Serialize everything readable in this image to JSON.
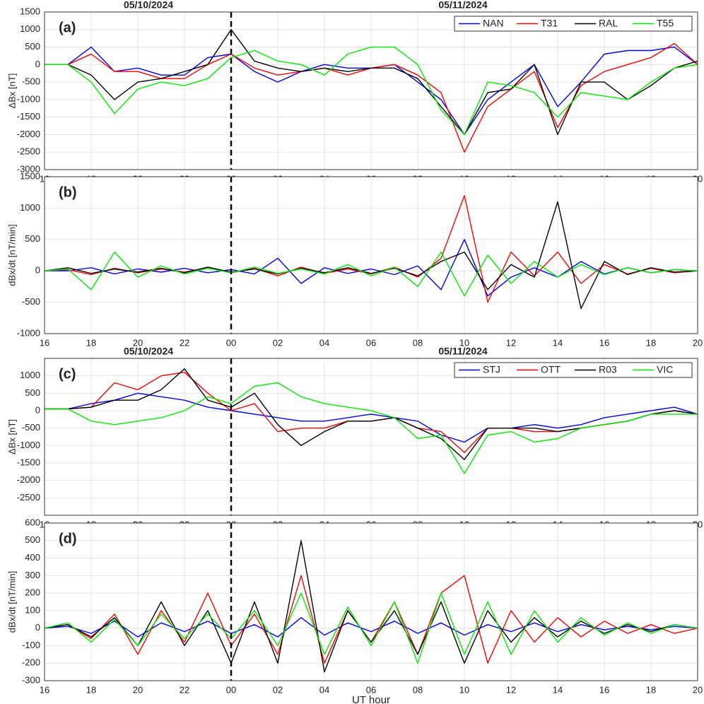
{
  "chart_data": [
    {
      "type": "line",
      "panel_label": "(a)",
      "ylabel": "ΔBx [nT]",
      "date_labels": [
        "05/10/2024",
        "05/11/2024"
      ],
      "vline_x": 24,
      "legend": "northeast",
      "grid": true,
      "x": [
        16,
        17,
        18,
        19,
        20,
        21,
        22,
        23,
        24,
        25,
        26,
        27,
        28,
        29,
        30,
        31,
        32,
        33,
        34,
        35,
        36,
        37,
        38,
        39,
        40,
        41,
        42,
        43,
        44
      ],
      "xlim": [
        16,
        44
      ],
      "xticks": [
        16,
        18,
        20,
        22,
        {
          "value": 24,
          "label": "00"
        },
        {
          "value": 26,
          "label": "02"
        },
        {
          "value": 28,
          "label": "04"
        },
        {
          "value": 30,
          "label": "06"
        },
        {
          "value": 32,
          "label": "08"
        },
        {
          "value": 34,
          "label": "10"
        },
        {
          "value": 36,
          "label": "12"
        },
        {
          "value": 38,
          "label": "14"
        },
        {
          "value": 40,
          "label": "16"
        },
        {
          "value": 42,
          "label": "18"
        },
        {
          "value": 44,
          "label": "20"
        }
      ],
      "ylim": [
        -3000,
        1500
      ],
      "yticks": [
        -3000,
        -2500,
        -2000,
        -1500,
        -1000,
        -500,
        0,
        500,
        1000,
        1500
      ],
      "series": [
        {
          "name": "NAN",
          "color": "#0000ff",
          "values": [
            0,
            0,
            500,
            -200,
            -100,
            -300,
            -300,
            200,
            300,
            -200,
            -500,
            -200,
            0,
            -100,
            -100,
            0,
            -500,
            -1000,
            -2000,
            -1000,
            -500,
            0,
            -1200,
            -500,
            300,
            400,
            400,
            500,
            0
          ]
        },
        {
          "name": "T31",
          "color": "#ff0000",
          "values": [
            0,
            0,
            300,
            -200,
            -200,
            -400,
            -400,
            0,
            300,
            -100,
            -300,
            -200,
            -100,
            -300,
            -100,
            0,
            -300,
            -800,
            -2500,
            -1200,
            -700,
            -200,
            -1800,
            -600,
            -200,
            0,
            200,
            600,
            0
          ]
        },
        {
          "name": "RAL",
          "color": "#000000",
          "values": [
            0,
            0,
            -300,
            -1000,
            -500,
            -400,
            -200,
            0,
            1000,
            100,
            -100,
            -200,
            -100,
            -200,
            -100,
            -100,
            -400,
            -1200,
            -2000,
            -800,
            -700,
            0,
            -2000,
            -500,
            -500,
            -1000,
            -600,
            -100,
            100
          ]
        },
        {
          "name": "T55",
          "color": "#00ee00",
          "values": [
            0,
            0,
            -500,
            -1400,
            -700,
            -500,
            -600,
            -400,
            200,
            400,
            100,
            0,
            -300,
            300,
            500,
            500,
            0,
            -1300,
            -2000,
            -500,
            -600,
            -800,
            -1500,
            -800,
            -900,
            -1000,
            -500,
            -100,
            0
          ]
        }
      ]
    },
    {
      "type": "line",
      "panel_label": "(b)",
      "ylabel": "dBx/dt [nT/min]",
      "vline_x": 24,
      "grid": true,
      "x": [
        16,
        17,
        18,
        19,
        20,
        21,
        22,
        23,
        24,
        25,
        26,
        27,
        28,
        29,
        30,
        31,
        32,
        33,
        34,
        35,
        36,
        37,
        38,
        39,
        40,
        41,
        42,
        43,
        44
      ],
      "xlim": [
        16,
        44
      ],
      "xticks": [
        16,
        18,
        20,
        22,
        {
          "value": 24,
          "label": "00"
        },
        {
          "value": 26,
          "label": "02"
        },
        {
          "value": 28,
          "label": "04"
        },
        {
          "value": 30,
          "label": "06"
        },
        {
          "value": 32,
          "label": "08"
        },
        {
          "value": 34,
          "label": "10"
        },
        {
          "value": 36,
          "label": "12"
        },
        {
          "value": 38,
          "label": "14"
        },
        {
          "value": 40,
          "label": "16"
        },
        {
          "value": 42,
          "label": "18"
        },
        {
          "value": 44,
          "label": "20"
        }
      ],
      "ylim": [
        -1000,
        1500
      ],
      "yticks": [
        -1000,
        -500,
        0,
        500,
        1000,
        1500
      ],
      "series": [
        {
          "name": "NAN",
          "color": "#0000ff",
          "values": [
            0,
            0,
            50,
            -50,
            30,
            -20,
            40,
            -30,
            20,
            -50,
            200,
            -200,
            50,
            -40,
            30,
            -60,
            80,
            -300,
            500,
            -400,
            -100,
            50,
            -100,
            150,
            -50,
            50,
            -30,
            20,
            0
          ]
        },
        {
          "name": "T31",
          "color": "#ff0000",
          "values": [
            0,
            20,
            -60,
            40,
            -30,
            30,
            -20,
            50,
            -30,
            40,
            -80,
            60,
            -40,
            30,
            -50,
            60,
            -100,
            200,
            1200,
            -500,
            300,
            -80,
            300,
            -200,
            100,
            -50,
            40,
            -30,
            0
          ]
        },
        {
          "name": "RAL",
          "color": "#000000",
          "values": [
            0,
            50,
            -40,
            30,
            -20,
            40,
            -30,
            60,
            -20,
            30,
            -50,
            40,
            -30,
            50,
            -40,
            40,
            -80,
            150,
            300,
            -300,
            100,
            -100,
            1100,
            -600,
            150,
            -60,
            50,
            -20,
            0
          ]
        },
        {
          "name": "T55",
          "color": "#00ee00",
          "values": [
            0,
            30,
            -300,
            300,
            -100,
            80,
            -50,
            40,
            -30,
            60,
            -40,
            30,
            -50,
            100,
            -80,
            60,
            -250,
            300,
            -400,
            250,
            -200,
            150,
            -100,
            100,
            -60,
            50,
            -30,
            20,
            0
          ]
        }
      ]
    },
    {
      "type": "line",
      "panel_label": "(c)",
      "ylabel": "ΔBx [nT]",
      "date_labels": [
        "05/10/2024",
        "05/11/2024"
      ],
      "vline_x": 24,
      "legend": "northeast",
      "grid": true,
      "x": [
        16,
        17,
        18,
        19,
        20,
        21,
        22,
        23,
        24,
        25,
        26,
        27,
        28,
        29,
        30,
        31,
        32,
        33,
        34,
        35,
        36,
        37,
        38,
        39,
        40,
        41,
        42,
        43,
        44
      ],
      "xlim": [
        16,
        44
      ],
      "xticks": [
        16,
        18,
        20,
        22,
        {
          "value": 24,
          "label": "00"
        },
        {
          "value": 26,
          "label": "02"
        },
        {
          "value": 28,
          "label": "04"
        },
        {
          "value": 30,
          "label": "06"
        },
        {
          "value": 32,
          "label": "08"
        },
        {
          "value": 34,
          "label": "10"
        },
        {
          "value": 36,
          "label": "12"
        },
        {
          "value": 38,
          "label": "14"
        },
        {
          "value": 40,
          "label": "16"
        },
        {
          "value": 42,
          "label": "18"
        },
        {
          "value": 44,
          "label": "20"
        }
      ],
      "ylim": [
        -3000,
        1500
      ],
      "yticks": [
        -2500,
        -2000,
        -1500,
        -1000,
        -500,
        0,
        500,
        1000
      ],
      "series": [
        {
          "name": "STJ",
          "color": "#0000ff",
          "values": [
            50,
            50,
            200,
            300,
            500,
            400,
            300,
            100,
            0,
            -100,
            -200,
            -300,
            -300,
            -200,
            -100,
            -200,
            -300,
            -700,
            -900,
            -500,
            -500,
            -400,
            -500,
            -400,
            -200,
            -100,
            0,
            100,
            -100
          ]
        },
        {
          "name": "OTT",
          "color": "#ff0000",
          "values": [
            50,
            50,
            100,
            800,
            600,
            1000,
            1100,
            500,
            0,
            200,
            -600,
            -500,
            -500,
            -300,
            -300,
            -200,
            -500,
            -600,
            -1200,
            -500,
            -500,
            -600,
            -600,
            -500,
            -400,
            -300,
            -100,
            0,
            -100
          ]
        },
        {
          "name": "R03",
          "color": "#000000",
          "values": [
            50,
            50,
            100,
            300,
            300,
            600,
            1200,
            300,
            100,
            500,
            -400,
            -1000,
            -600,
            -300,
            -300,
            -200,
            -500,
            -800,
            -1400,
            -500,
            -500,
            -500,
            -600,
            -500,
            -400,
            -300,
            -100,
            0,
            -100
          ]
        },
        {
          "name": "VIC",
          "color": "#00ee00",
          "values": [
            50,
            50,
            -300,
            -400,
            -300,
            -200,
            0,
            400,
            200,
            700,
            800,
            400,
            200,
            100,
            0,
            -200,
            -800,
            -700,
            -1800,
            -700,
            -600,
            -900,
            -800,
            -500,
            -400,
            -300,
            -100,
            -100,
            -100
          ]
        }
      ]
    },
    {
      "type": "line",
      "panel_label": "(d)",
      "ylabel": "dBx/dt [nT/min]",
      "xlabel": "UT hour",
      "vline_x": 24,
      "grid": true,
      "x": [
        16,
        17,
        18,
        19,
        20,
        21,
        22,
        23,
        24,
        25,
        26,
        27,
        28,
        29,
        30,
        31,
        32,
        33,
        34,
        35,
        36,
        37,
        38,
        39,
        40,
        41,
        42,
        43,
        44
      ],
      "xlim": [
        16,
        44
      ],
      "xticks": [
        16,
        18,
        20,
        22,
        {
          "value": 24,
          "label": "00"
        },
        {
          "value": 26,
          "label": "02"
        },
        {
          "value": 28,
          "label": "04"
        },
        {
          "value": 30,
          "label": "06"
        },
        {
          "value": 32,
          "label": "08"
        },
        {
          "value": 34,
          "label": "10"
        },
        {
          "value": 36,
          "label": "12"
        },
        {
          "value": 38,
          "label": "14"
        },
        {
          "value": 40,
          "label": "16"
        },
        {
          "value": 42,
          "label": "18"
        },
        {
          "value": 44,
          "label": "20"
        }
      ],
      "ylim": [
        -300,
        600
      ],
      "yticks": [
        -300,
        -200,
        -100,
        0,
        100,
        200,
        300,
        400,
        500,
        600
      ],
      "series": [
        {
          "name": "STJ",
          "color": "#0000ff",
          "values": [
            0,
            10,
            -30,
            40,
            -50,
            30,
            -20,
            40,
            -30,
            20,
            -50,
            60,
            -40,
            30,
            -20,
            40,
            -30,
            30,
            -40,
            20,
            -20,
            30,
            -20,
            20,
            -10,
            10,
            -10,
            10,
            0
          ]
        },
        {
          "name": "OTT",
          "color": "#ff0000",
          "values": [
            0,
            20,
            -60,
            80,
            -150,
            100,
            -80,
            200,
            -100,
            80,
            -150,
            300,
            -200,
            100,
            -80,
            150,
            -150,
            200,
            300,
            -200,
            100,
            -80,
            60,
            -50,
            40,
            -30,
            20,
            -30,
            0
          ]
        },
        {
          "name": "R03",
          "color": "#000000",
          "values": [
            0,
            20,
            -50,
            60,
            -100,
            150,
            -100,
            100,
            -200,
            150,
            -200,
            500,
            -250,
            100,
            -80,
            100,
            -150,
            150,
            -200,
            100,
            -80,
            60,
            -50,
            40,
            -30,
            20,
            -20,
            20,
            0
          ]
        },
        {
          "name": "VIC",
          "color": "#00ee00",
          "values": [
            0,
            30,
            -80,
            50,
            -100,
            80,
            -60,
            80,
            -60,
            100,
            -100,
            200,
            -150,
            120,
            -100,
            150,
            -200,
            200,
            -150,
            150,
            -150,
            100,
            -80,
            60,
            -40,
            30,
            -30,
            20,
            0
          ]
        }
      ]
    }
  ]
}
